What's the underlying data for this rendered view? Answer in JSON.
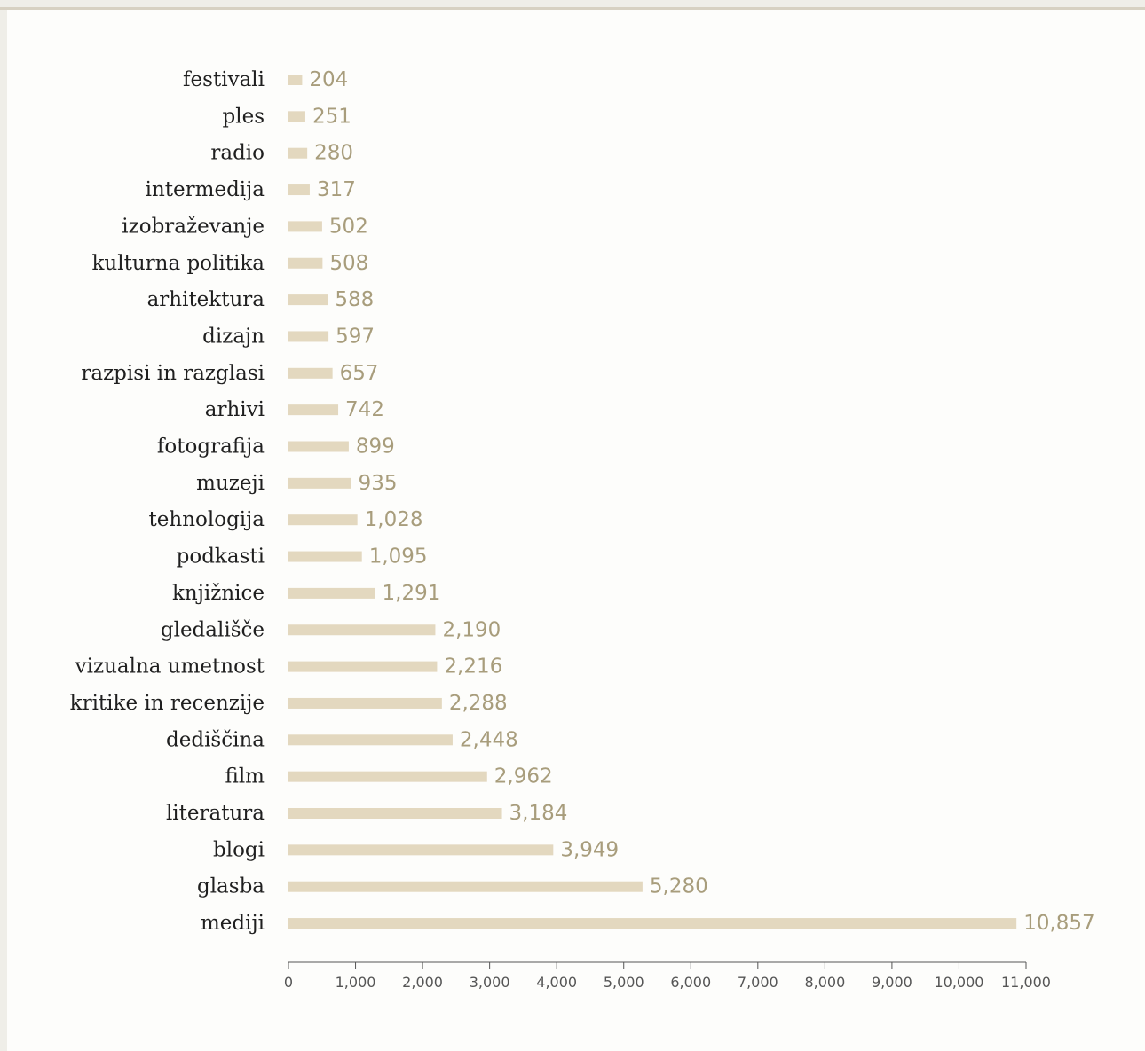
{
  "colors": {
    "bar": "#e3d8bf",
    "value_label": "#a89d7c",
    "category_label": "#1f1f1f",
    "axis": "#555555",
    "background": "#fdfdfb"
  },
  "chart_data": {
    "type": "bar",
    "orientation": "horizontal",
    "categories": [
      "festivali",
      "ples",
      "radio",
      "intermedija",
      "izobraževanje",
      "kulturna politika",
      "arhitektura",
      "dizajn",
      "razpisi in razglasi",
      "arhivi",
      "fotografija",
      "muzeji",
      "tehnologija",
      "podkasti",
      "knjižnice",
      "gledališče",
      "vizualna umetnost",
      "kritike in recenzije",
      "dediščina",
      "film",
      "literatura",
      "blogi",
      "glasba",
      "mediji"
    ],
    "values": [
      204,
      251,
      280,
      317,
      502,
      508,
      588,
      597,
      657,
      742,
      899,
      935,
      1028,
      1095,
      1291,
      2190,
      2216,
      2288,
      2448,
      2962,
      3184,
      3949,
      5280,
      10857
    ],
    "value_labels": [
      "204",
      "251",
      "280",
      "317",
      "502",
      "508",
      "588",
      "597",
      "657",
      "742",
      "899",
      "935",
      "1,028",
      "1,095",
      "1,291",
      "2,190",
      "2,216",
      "2,288",
      "2,448",
      "2,962",
      "3,184",
      "3,949",
      "5,280",
      "10,857"
    ],
    "xticks": [
      0,
      1000,
      2000,
      3000,
      4000,
      5000,
      6000,
      7000,
      8000,
      9000,
      10000,
      11000
    ],
    "xtick_labels": [
      "0",
      "1,000",
      "2,000",
      "3,000",
      "4,000",
      "5,000",
      "6,000",
      "7,000",
      "8,000",
      "9,000",
      "10,000",
      "11,000"
    ],
    "xlim": [
      0,
      11000
    ],
    "title": "",
    "xlabel": "",
    "ylabel": "",
    "grid": false,
    "legend": "none"
  }
}
